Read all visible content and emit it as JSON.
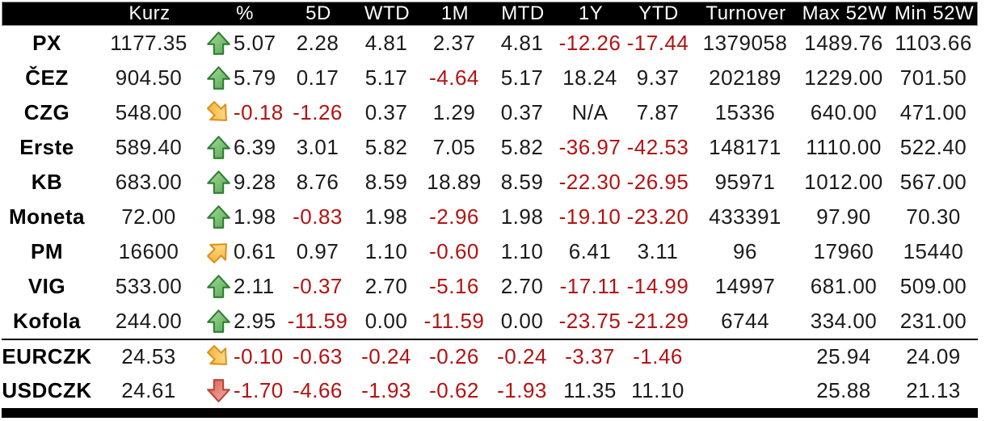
{
  "colors": {
    "header_bg": "#000000",
    "header_text": "#ffffff",
    "text": "#1b1b1b",
    "negative_text": "#b31312",
    "arrow_green": "#57a94f",
    "arrow_yellow": "#f5b43a",
    "arrow_red": "#dd5f51"
  },
  "chart_data": {
    "type": "table",
    "columns": [
      "",
      "Kurz",
      "%",
      "5D",
      "WTD",
      "1M",
      "MTD",
      "1Y",
      "YTD",
      "Turnover",
      "Max 52W",
      "Min 52W"
    ],
    "rows": [
      {
        "label": "PX",
        "group": "equity",
        "kurz": "1177.35",
        "arrow": "up-green",
        "pct": "5.07",
        "d5": "2.28",
        "wtd": "4.81",
        "m1": "2.37",
        "mtd": "4.81",
        "y1": "-12.26",
        "ytd": "-17.44",
        "turnover": "1379058",
        "max52w": "1489.76",
        "min52w": "1103.66"
      },
      {
        "label": "ČEZ",
        "group": "equity",
        "kurz": "904.50",
        "arrow": "up-green",
        "pct": "5.79",
        "d5": "0.17",
        "wtd": "5.17",
        "m1": "-4.64",
        "mtd": "5.17",
        "y1": "18.24",
        "ytd": "9.37",
        "turnover": "202189",
        "max52w": "1229.00",
        "min52w": "701.50"
      },
      {
        "label": "CZG",
        "group": "equity",
        "kurz": "548.00",
        "arrow": "se-yellow",
        "pct": "-0.18",
        "d5": "-1.26",
        "wtd": "0.37",
        "m1": "1.29",
        "mtd": "0.37",
        "y1": "N/A",
        "ytd": "7.87",
        "turnover": "15336",
        "max52w": "640.00",
        "min52w": "471.00"
      },
      {
        "label": "Erste",
        "group": "equity",
        "kurz": "589.40",
        "arrow": "up-green",
        "pct": "6.39",
        "d5": "3.01",
        "wtd": "5.82",
        "m1": "7.05",
        "mtd": "5.82",
        "y1": "-36.97",
        "ytd": "-42.53",
        "turnover": "148171",
        "max52w": "1110.00",
        "min52w": "522.40"
      },
      {
        "label": "KB",
        "group": "equity",
        "kurz": "683.00",
        "arrow": "up-green",
        "pct": "9.28",
        "d5": "8.76",
        "wtd": "8.59",
        "m1": "18.89",
        "mtd": "8.59",
        "y1": "-22.30",
        "ytd": "-26.95",
        "turnover": "95971",
        "max52w": "1012.00",
        "min52w": "567.00"
      },
      {
        "label": "Moneta",
        "group": "equity",
        "kurz": "72.00",
        "arrow": "up-green",
        "pct": "1.98",
        "d5": "-0.83",
        "wtd": "1.98",
        "m1": "-2.96",
        "mtd": "1.98",
        "y1": "-19.10",
        "ytd": "-23.20",
        "turnover": "433391",
        "max52w": "97.90",
        "min52w": "70.30"
      },
      {
        "label": "PM",
        "group": "equity",
        "kurz": "16600",
        "arrow": "ne-yellow",
        "pct": "0.61",
        "d5": "0.97",
        "wtd": "1.10",
        "m1": "-0.60",
        "mtd": "1.10",
        "y1": "6.41",
        "ytd": "3.11",
        "turnover": "96",
        "max52w": "17960",
        "min52w": "15440"
      },
      {
        "label": "VIG",
        "group": "equity",
        "kurz": "533.00",
        "arrow": "up-green",
        "pct": "2.11",
        "d5": "-0.37",
        "wtd": "2.70",
        "m1": "-5.16",
        "mtd": "2.70",
        "y1": "-17.11",
        "ytd": "-14.99",
        "turnover": "14997",
        "max52w": "681.00",
        "min52w": "509.00"
      },
      {
        "label": "Kofola",
        "group": "equity",
        "kurz": "244.00",
        "arrow": "up-green",
        "pct": "2.95",
        "d5": "-11.59",
        "wtd": "0.00",
        "m1": "-11.59",
        "mtd": "0.00",
        "y1": "-23.75",
        "ytd": "-21.29",
        "turnover": "6744",
        "max52w": "334.00",
        "min52w": "231.00"
      },
      {
        "label": "EURCZK",
        "group": "fx",
        "kurz": "24.53",
        "arrow": "se-yellow",
        "pct": "-0.10",
        "d5": "-0.63",
        "wtd": "-0.24",
        "m1": "-0.26",
        "mtd": "-0.24",
        "y1": "-3.37",
        "ytd": "-1.46",
        "turnover": "",
        "max52w": "25.94",
        "min52w": "24.09"
      },
      {
        "label": "USDCZK",
        "group": "fx",
        "kurz": "24.61",
        "arrow": "down-red",
        "pct": "-1.70",
        "d5": "-4.66",
        "wtd": "-1.93",
        "m1": "-0.62",
        "mtd": "-1.93",
        "y1": "11.35",
        "ytd": "11.10",
        "turnover": "",
        "max52w": "25.88",
        "min52w": "21.13"
      }
    ]
  }
}
